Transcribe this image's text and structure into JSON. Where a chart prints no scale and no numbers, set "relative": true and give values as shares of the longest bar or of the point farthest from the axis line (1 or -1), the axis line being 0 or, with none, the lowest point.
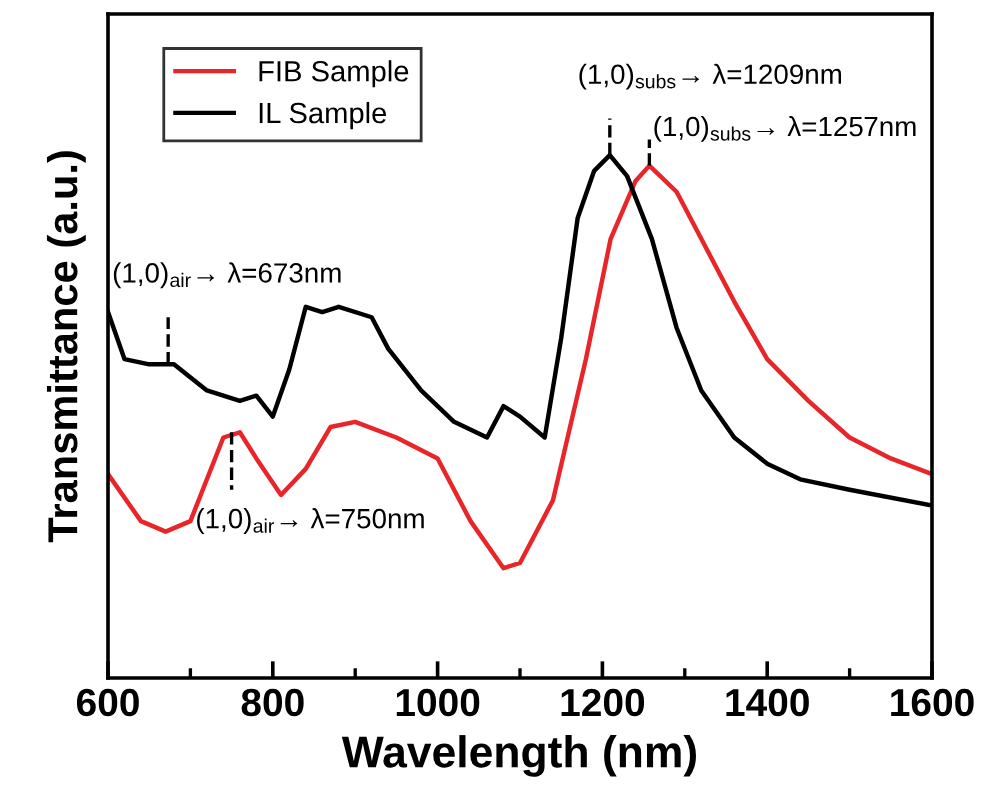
{
  "chart_data": {
    "type": "line",
    "xlabel": "Wavelength (nm)",
    "ylabel": "Transmittance (a.u.)",
    "relative": true,
    "xlim": [
      600,
      1600
    ],
    "xticks": [
      600,
      800,
      1000,
      1200,
      1400,
      1600
    ],
    "legend": "top left",
    "grid": false,
    "marker": "none",
    "line_style": "solid",
    "series": [
      {
        "name": "FIB Sample",
        "color": "#e8262a",
        "x": [
          600,
          640,
          670,
          700,
          740,
          760,
          780,
          810,
          840,
          870,
          900,
          950,
          1000,
          1040,
          1080,
          1100,
          1140,
          1180,
          1210,
          1240,
          1257,
          1290,
          1320,
          1360,
          1400,
          1450,
          1500,
          1550,
          1600
        ],
        "values": [
          0.39,
          0.3,
          0.28,
          0.3,
          0.46,
          0.47,
          0.42,
          0.35,
          0.4,
          0.48,
          0.49,
          0.46,
          0.42,
          0.3,
          0.21,
          0.22,
          0.34,
          0.61,
          0.84,
          0.95,
          0.98,
          0.93,
          0.84,
          0.72,
          0.61,
          0.53,
          0.46,
          0.42,
          0.39
        ]
      },
      {
        "name": "IL Sample",
        "color": "#000000",
        "x": [
          600,
          620,
          650,
          680,
          720,
          760,
          780,
          800,
          820,
          840,
          860,
          880,
          920,
          940,
          980,
          1020,
          1060,
          1080,
          1100,
          1130,
          1150,
          1170,
          1190,
          1209,
          1230,
          1260,
          1290,
          1320,
          1360,
          1400,
          1440,
          1500,
          1600
        ],
        "values": [
          0.7,
          0.61,
          0.6,
          0.6,
          0.55,
          0.53,
          0.54,
          0.5,
          0.59,
          0.71,
          0.7,
          0.71,
          0.69,
          0.63,
          0.55,
          0.49,
          0.46,
          0.52,
          0.5,
          0.46,
          0.65,
          0.88,
          0.97,
          1.0,
          0.96,
          0.84,
          0.67,
          0.55,
          0.46,
          0.41,
          0.38,
          0.36,
          0.33
        ]
      }
    ],
    "annotations": [
      {
        "text": "(1,0)$_{air}$→ λ=673nm",
        "x": 673,
        "y": 0.6
      },
      {
        "text": "(1,0)$_{air}$→ λ=750nm",
        "x": 750,
        "y": 0.47
      },
      {
        "text": "(1,0)$_{subs}$→ λ=1209nm",
        "x": 1209,
        "y": 1.0
      },
      {
        "text": "(1,0)$_{subs}$→ λ=1257nm",
        "x": 1257,
        "y": 0.98
      }
    ]
  }
}
